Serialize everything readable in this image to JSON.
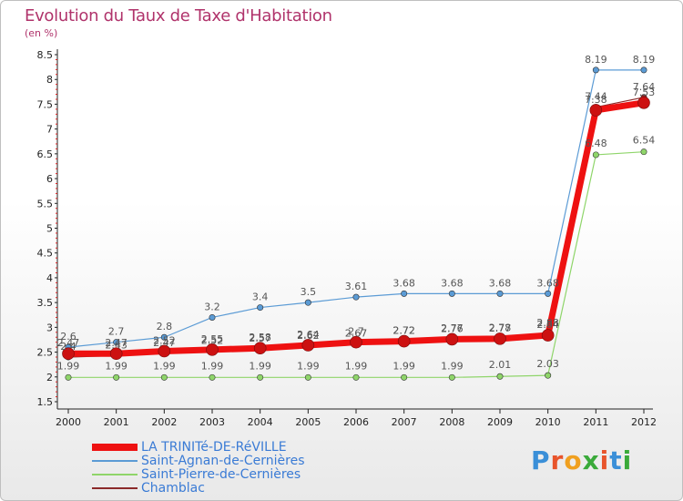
{
  "header": {
    "title": "Evolution du Taux de Taxe d'Habitation",
    "unit": "(en %)"
  },
  "logo": {
    "text": "Proxiti",
    "colors": [
      "#3a8fd8",
      "#e8542b",
      "#f0a020",
      "#3aaa3a",
      "#e8542b",
      "#3a8fd8",
      "#3aaa3a"
    ]
  },
  "chart_data": {
    "type": "line",
    "categories": [
      "2000",
      "2001",
      "2002",
      "2003",
      "2004",
      "2005",
      "2006",
      "2007",
      "2008",
      "2009",
      "2010",
      "2011",
      "2012"
    ],
    "y_ticks": [
      "1.5",
      "2",
      "2.5",
      "3",
      "3.5",
      "4",
      "4.5",
      "5",
      "5.5",
      "6",
      "6.5",
      "7",
      "7.5",
      "8",
      "8.5"
    ],
    "ylim": [
      1.5,
      8.5
    ],
    "grid": false,
    "legend_position": "bottom",
    "series": [
      {
        "name": "LA TRINITé-DE-RéVILLE",
        "color": "#ee1111",
        "values": [
          2.47,
          2.47,
          2.52,
          2.55,
          2.58,
          2.64,
          2.7,
          2.72,
          2.76,
          2.77,
          2.84,
          7.38,
          7.53
        ],
        "labels": [
          "2.47",
          "2.47",
          "2.52",
          "2.55",
          "2.58",
          "2.64",
          "2.7",
          "2.72",
          "2.76",
          "2.77",
          "2.84",
          "7.38",
          "7.53"
        ]
      },
      {
        "name": "Saint-Agnan-de-Cernières",
        "color": "#5b9bd5",
        "values": [
          2.6,
          2.7,
          2.8,
          3.2,
          3.4,
          3.5,
          3.61,
          3.68,
          3.68,
          3.68,
          3.68,
          8.19,
          8.19
        ],
        "labels": [
          "2.6",
          "2.7",
          "2.8",
          "3.2",
          "3.4",
          "3.5",
          "3.61",
          "3.68",
          "3.68",
          "3.68",
          "3.68",
          "8.19",
          "8.19"
        ]
      },
      {
        "name": "Saint-Pierre-de-Cernières",
        "color": "#8fd56a",
        "values": [
          1.99,
          1.99,
          1.99,
          1.99,
          1.99,
          1.99,
          1.99,
          1.99,
          1.99,
          2.01,
          2.03,
          6.48,
          6.54
        ],
        "labels": [
          "1.99",
          "1.99",
          "1.99",
          "1.99",
          "1.99",
          "1.99",
          "1.99",
          "1.99",
          "1.99",
          "2.01",
          "2.03",
          "6.48",
          "6.54"
        ]
      },
      {
        "name": "Chamblac",
        "color": "#8b2a2a",
        "values": [
          2.4,
          2.43,
          2.47,
          2.52,
          2.57,
          2.62,
          2.67,
          2.72,
          2.77,
          2.78,
          2.88,
          7.44,
          7.64
        ],
        "labels": [
          "2.4",
          "2.43",
          "2.47",
          "2.52",
          "2.57",
          "2.62",
          "2.67",
          "2.72",
          "2.77",
          "2.78",
          "2.88",
          "7.44",
          "7.64"
        ]
      }
    ]
  }
}
